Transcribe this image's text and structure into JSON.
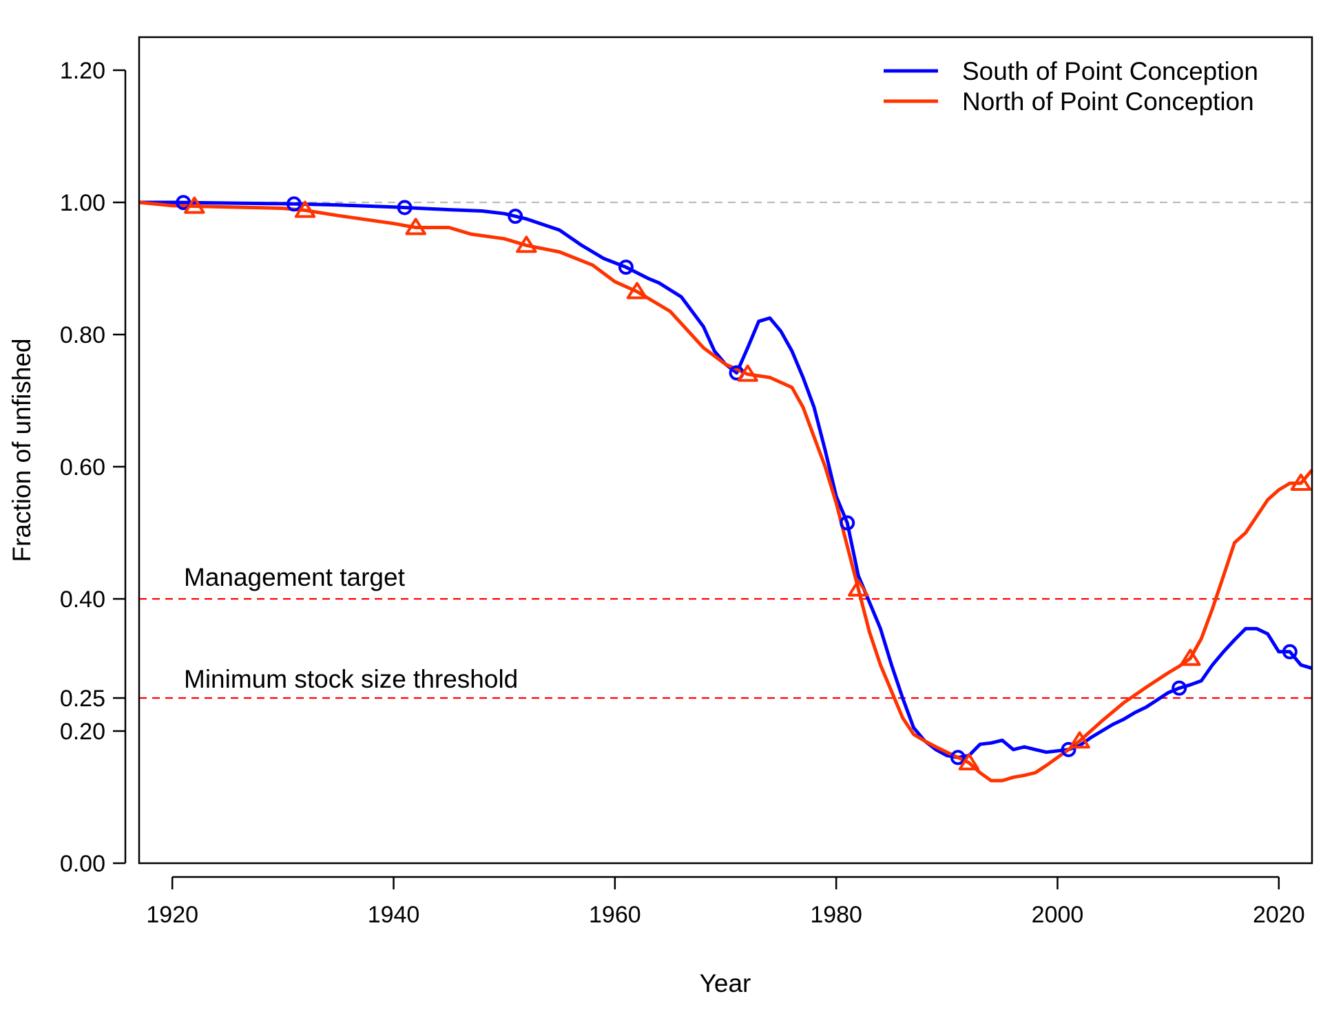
{
  "chart_data": {
    "type": "line",
    "xlabel": "Year",
    "ylabel": "Fraction of unfished",
    "xlim": [
      1917,
      2023
    ],
    "ylim": [
      0,
      1.25
    ],
    "x_ticks": [
      1920,
      1940,
      1960,
      1980,
      2000,
      2020
    ],
    "x_tick_labels": [
      "1920",
      "1940",
      "1960",
      "1980",
      "2000",
      "2020"
    ],
    "y_ticks": [
      0,
      0.2,
      0.25,
      0.4,
      0.6,
      0.8,
      1.0,
      1.2
    ],
    "y_tick_labels": [
      "0.00",
      "0.20",
      "0.25",
      "0.40",
      "0.60",
      "0.80",
      "1.00",
      "1.20"
    ],
    "grid": false,
    "legend_position": "top-right",
    "reference_lines": [
      {
        "y": 1.0,
        "style": "dashed",
        "color": "#bbbbbb",
        "label": ""
      },
      {
        "y": 0.4,
        "style": "dashed",
        "color": "#ff0000",
        "label": "Management target"
      },
      {
        "y": 0.25,
        "style": "dashed",
        "color": "#ff0000",
        "label": "Minimum stock size threshold"
      }
    ],
    "series": [
      {
        "name": "South of Point Conception",
        "color": "#0000ff",
        "marker": "circle",
        "marker_years": [
          1921,
          1931,
          1941,
          1951,
          1961,
          1971,
          1981,
          1991,
          2001,
          2011,
          2021
        ],
        "x": [
          1917,
          1920,
          1925,
          1930,
          1935,
          1940,
          1945,
          1948,
          1950,
          1952,
          1955,
          1957,
          1959,
          1961,
          1963,
          1964,
          1966,
          1968,
          1969,
          1970,
          1971,
          1972,
          1973,
          1974,
          1975,
          1976,
          1977,
          1978,
          1979,
          1980,
          1981,
          1982,
          1983,
          1984,
          1985,
          1986,
          1987,
          1988,
          1989,
          1990,
          1991,
          1992,
          1993,
          1994,
          1995,
          1996,
          1997,
          1998,
          1999,
          2000,
          2001,
          2002,
          2003,
          2004,
          2005,
          2006,
          2007,
          2008,
          2009,
          2010,
          2011,
          2012,
          2013,
          2014,
          2015,
          2016,
          2017,
          2018,
          2019,
          2020,
          2021,
          2022,
          2023
        ],
        "y": [
          1.0,
          1.0,
          0.999,
          0.998,
          0.996,
          0.993,
          0.989,
          0.987,
          0.983,
          0.975,
          0.958,
          0.935,
          0.915,
          0.902,
          0.885,
          0.878,
          0.857,
          0.812,
          0.775,
          0.755,
          0.742,
          0.78,
          0.82,
          0.825,
          0.805,
          0.775,
          0.735,
          0.69,
          0.625,
          0.555,
          0.515,
          0.435,
          0.395,
          0.355,
          0.3,
          0.25,
          0.205,
          0.185,
          0.172,
          0.163,
          0.16,
          0.163,
          0.18,
          0.182,
          0.186,
          0.172,
          0.176,
          0.172,
          0.168,
          0.17,
          0.172,
          0.178,
          0.19,
          0.2,
          0.21,
          0.218,
          0.228,
          0.236,
          0.247,
          0.258,
          0.265,
          0.27,
          0.276,
          0.3,
          0.32,
          0.338,
          0.355,
          0.355,
          0.347,
          0.32,
          0.32,
          0.3,
          0.295
        ]
      },
      {
        "name": "North of Point Conception",
        "color": "#ff3300",
        "marker": "triangle",
        "marker_years": [
          1922,
          1932,
          1942,
          1952,
          1962,
          1972,
          1982,
          1992,
          2002,
          2012,
          2022
        ],
        "x": [
          1917,
          1920,
          1925,
          1930,
          1932,
          1935,
          1940,
          1942,
          1945,
          1947,
          1950,
          1952,
          1955,
          1958,
          1960,
          1962,
          1965,
          1968,
          1970,
          1972,
          1974,
          1976,
          1977,
          1978,
          1979,
          1980,
          1981,
          1982,
          1983,
          1984,
          1985,
          1986,
          1987,
          1988,
          1989,
          1990,
          1991,
          1992,
          1993,
          1994,
          1995,
          1996,
          1997,
          1998,
          1999,
          2000,
          2001,
          2002,
          2004,
          2006,
          2008,
          2010,
          2011,
          2012,
          2013,
          2014,
          2015,
          2016,
          2017,
          2018,
          2019,
          2020,
          2021,
          2022,
          2023
        ],
        "y": [
          1.0,
          0.995,
          0.993,
          0.991,
          0.988,
          0.98,
          0.968,
          0.962,
          0.962,
          0.952,
          0.945,
          0.935,
          0.925,
          0.905,
          0.88,
          0.865,
          0.835,
          0.78,
          0.755,
          0.74,
          0.735,
          0.72,
          0.69,
          0.645,
          0.6,
          0.545,
          0.48,
          0.415,
          0.35,
          0.3,
          0.26,
          0.22,
          0.195,
          0.185,
          0.176,
          0.168,
          0.16,
          0.152,
          0.137,
          0.125,
          0.125,
          0.13,
          0.133,
          0.137,
          0.148,
          0.16,
          0.172,
          0.185,
          0.215,
          0.243,
          0.266,
          0.288,
          0.298,
          0.31,
          0.34,
          0.385,
          0.435,
          0.485,
          0.5,
          0.525,
          0.55,
          0.565,
          0.575,
          0.575,
          0.595
        ]
      }
    ]
  }
}
